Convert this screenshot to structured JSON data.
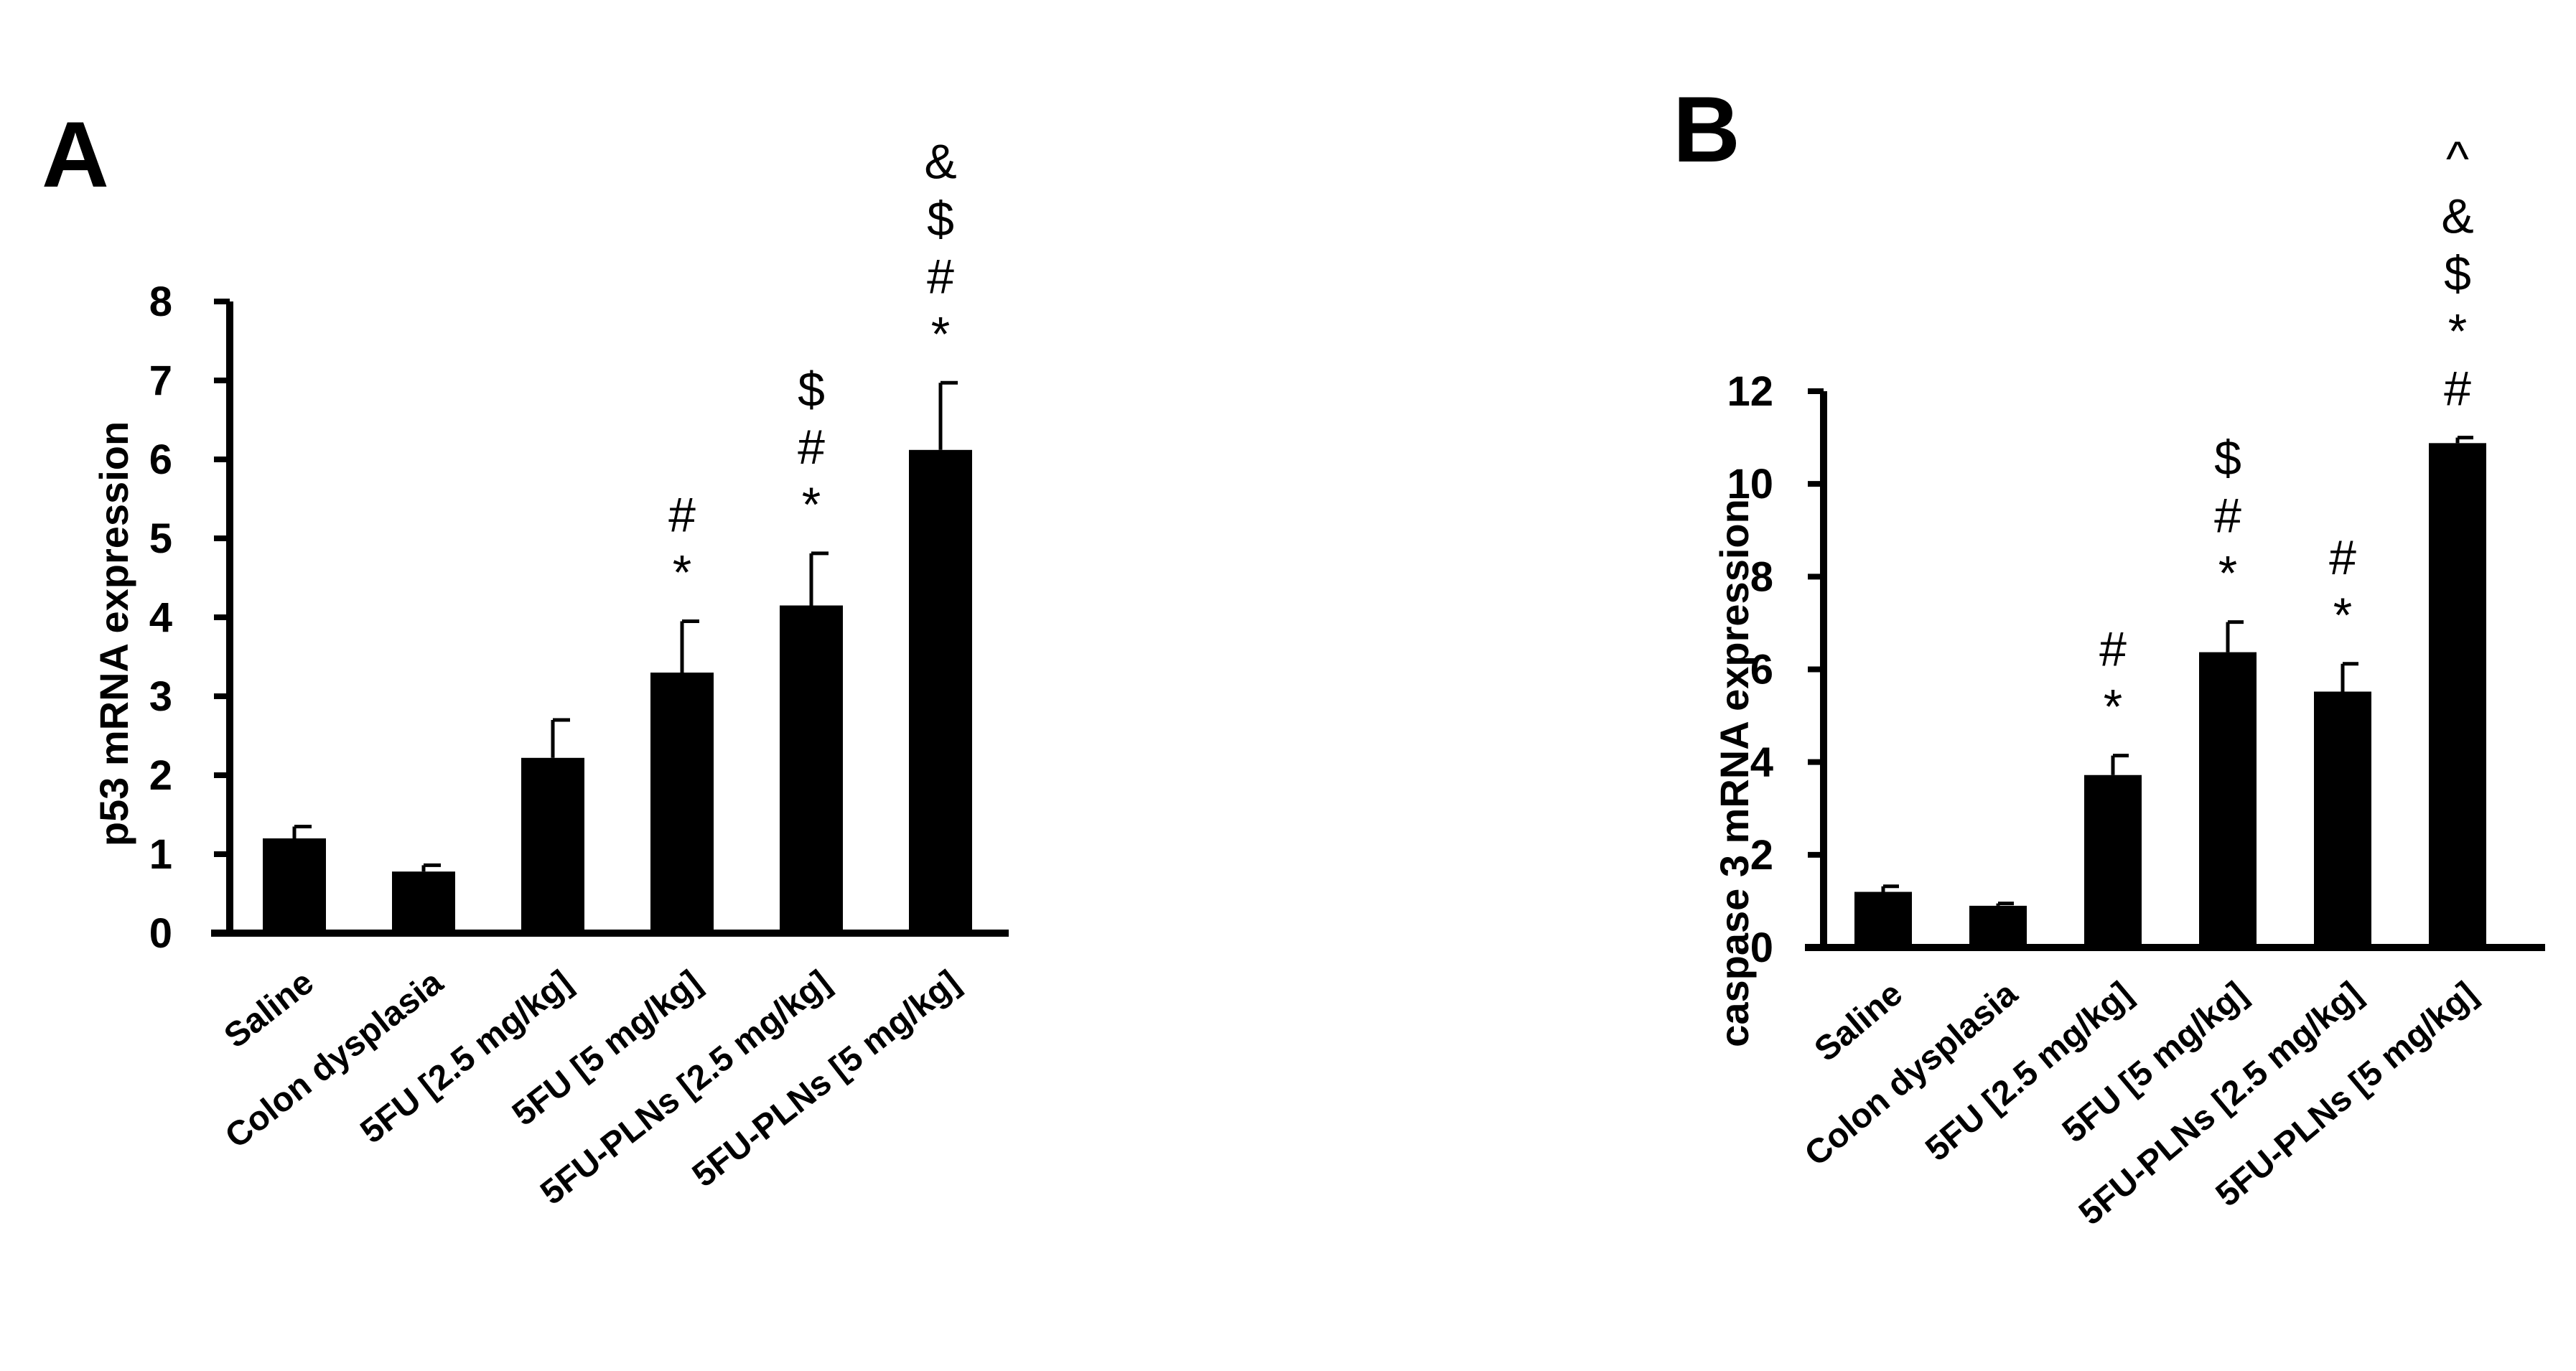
{
  "chart_data": [
    {
      "type": "bar",
      "panel_label": "A",
      "ylabel": "p53 mRNA expression",
      "xlabel": "",
      "ylim": [
        0,
        8
      ],
      "yticks": [
        "0",
        "1",
        "2",
        "3",
        "4",
        "5",
        "6",
        "7",
        "8"
      ],
      "categories": [
        "Saline",
        "Colon dysplasia",
        "5FU [2.5 mg/kg]",
        "5FU [5 mg/kg]",
        "5FU-PLNs  [2.5 mg/kg]",
        "5FU-PLNs  [5 mg/kg]"
      ],
      "values": [
        1.2,
        0.78,
        2.22,
        3.3,
        4.15,
        6.12
      ],
      "errors": [
        0.15,
        0.08,
        0.48,
        0.65,
        0.66,
        0.85
      ],
      "annotations": [
        [],
        [],
        [],
        [
          "*",
          "#"
        ],
        [
          "*",
          "#",
          "$"
        ],
        [
          "*",
          "#",
          "$",
          "&"
        ]
      ],
      "color": "#000000"
    },
    {
      "type": "bar",
      "panel_label": "B",
      "ylabel": "caspase 3 mRNA expression",
      "xlabel": "",
      "ylim": [
        0,
        12
      ],
      "yticks": [
        "0",
        "2",
        "4",
        "6",
        "8",
        "10",
        "12"
      ],
      "categories": [
        "Saline",
        "Colon dysplasia",
        "5FU [2.5 mg/kg]",
        "5FU [5 mg/kg]",
        "5FU-PLNs  [2.5 mg/kg]",
        "5FU-PLNs  [5 mg/kg]"
      ],
      "values": [
        1.2,
        0.9,
        3.72,
        6.37,
        5.52,
        10.88
      ],
      "errors": [
        0.12,
        0.05,
        0.42,
        0.65,
        0.6,
        0.12
      ],
      "annotations": [
        [],
        [],
        [
          "*",
          "#"
        ],
        [
          "*",
          "#",
          "$"
        ],
        [
          "*",
          "#"
        ],
        [
          "#",
          "*",
          "$",
          "&",
          "^"
        ]
      ],
      "color": "#000000"
    }
  ]
}
